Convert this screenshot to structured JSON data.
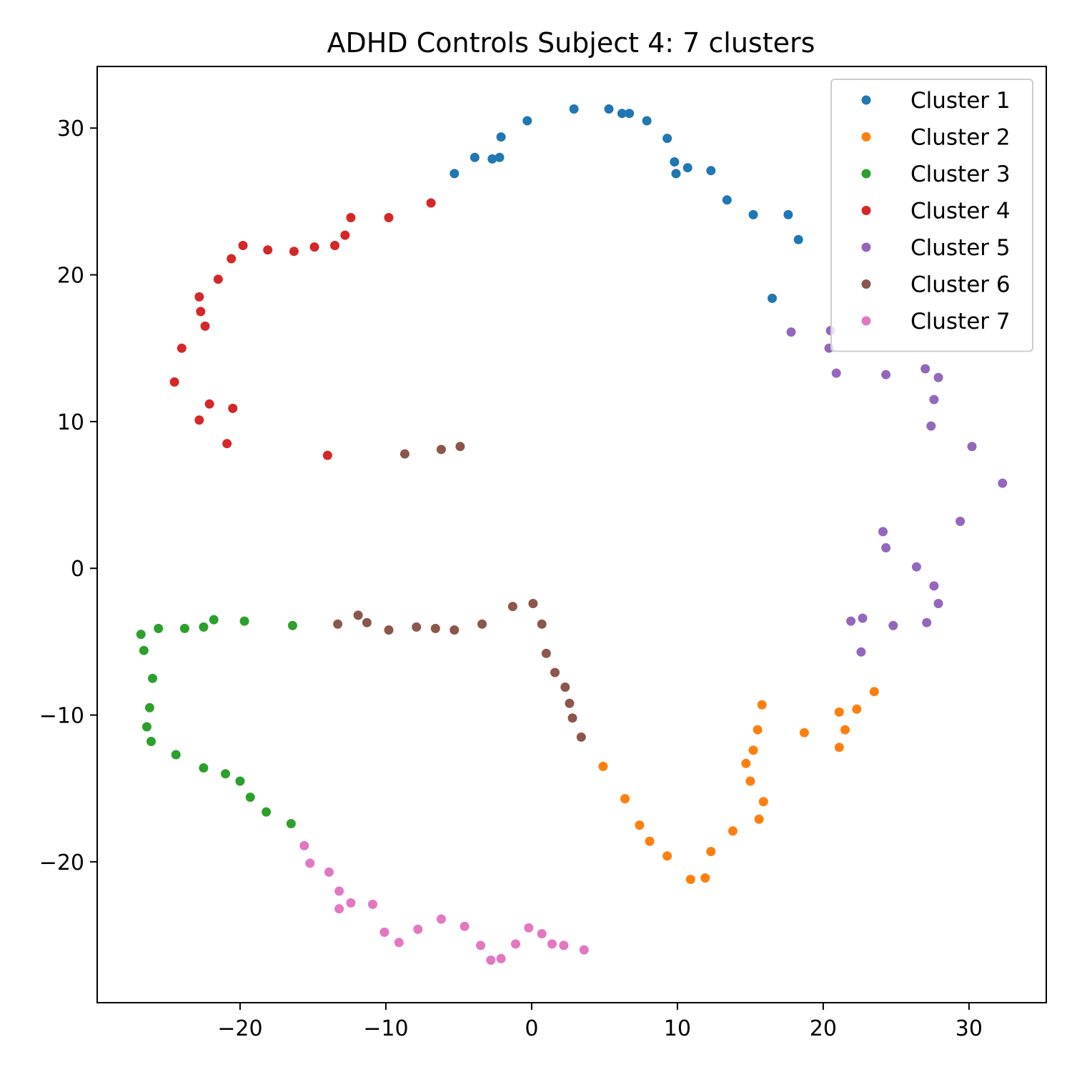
{
  "chart_data": {
    "type": "scatter",
    "title": "ADHD Controls Subject 4: 7 clusters",
    "xlabel": "",
    "ylabel": "",
    "xlim": [
      -29.8,
      35.3
    ],
    "ylim": [
      -29.6,
      34.2
    ],
    "x_ticks": [
      -20,
      -10,
      0,
      10,
      20,
      30
    ],
    "y_ticks": [
      -20,
      -10,
      0,
      10,
      20,
      30
    ],
    "x_tick_labels": [
      "−20",
      "−10",
      "0",
      "10",
      "20",
      "30"
    ],
    "y_tick_labels": [
      "−20",
      "−10",
      "0",
      "10",
      "20",
      "30"
    ],
    "grid": false,
    "legend_position": "top-right",
    "series": [
      {
        "name": "Cluster 1",
        "color": "#1f77b4",
        "points": [
          [
            -5.3,
            26.9
          ],
          [
            -3.9,
            28.0
          ],
          [
            -2.7,
            27.9
          ],
          [
            -2.2,
            28.0
          ],
          [
            -2.1,
            29.4
          ],
          [
            -0.3,
            30.5
          ],
          [
            2.9,
            31.3
          ],
          [
            5.3,
            31.3
          ],
          [
            6.2,
            31.0
          ],
          [
            6.7,
            31.0
          ],
          [
            7.9,
            30.5
          ],
          [
            9.3,
            29.3
          ],
          [
            9.8,
            27.7
          ],
          [
            9.9,
            26.9
          ],
          [
            10.7,
            27.3
          ],
          [
            12.3,
            27.1
          ],
          [
            13.4,
            25.1
          ],
          [
            15.2,
            24.1
          ],
          [
            17.6,
            24.1
          ],
          [
            18.3,
            22.4
          ],
          [
            16.5,
            18.4
          ]
        ]
      },
      {
        "name": "Cluster 2",
        "color": "#ff7f0e",
        "points": [
          [
            4.9,
            -13.5
          ],
          [
            6.4,
            -15.7
          ],
          [
            7.4,
            -17.5
          ],
          [
            8.1,
            -18.6
          ],
          [
            9.3,
            -19.6
          ],
          [
            10.9,
            -21.2
          ],
          [
            11.9,
            -21.1
          ],
          [
            12.3,
            -19.3
          ],
          [
            13.8,
            -17.9
          ],
          [
            14.7,
            -13.3
          ],
          [
            15.0,
            -14.5
          ],
          [
            15.2,
            -12.4
          ],
          [
            15.5,
            -11.0
          ],
          [
            15.6,
            -17.1
          ],
          [
            15.8,
            -9.3
          ],
          [
            15.9,
            -15.9
          ],
          [
            18.7,
            -11.2
          ],
          [
            21.1,
            -9.8
          ],
          [
            21.1,
            -12.2
          ],
          [
            21.5,
            -11.0
          ],
          [
            22.3,
            -9.6
          ],
          [
            23.5,
            -8.4
          ]
        ]
      },
      {
        "name": "Cluster 3",
        "color": "#2ca02c",
        "points": [
          [
            -26.8,
            -4.5
          ],
          [
            -26.6,
            -5.6
          ],
          [
            -26.0,
            -7.5
          ],
          [
            -25.6,
            -4.1
          ],
          [
            -26.2,
            -9.5
          ],
          [
            -26.4,
            -10.8
          ],
          [
            -26.1,
            -11.8
          ],
          [
            -24.4,
            -12.7
          ],
          [
            -23.8,
            -4.1
          ],
          [
            -22.5,
            -4.0
          ],
          [
            -21.8,
            -3.5
          ],
          [
            -22.5,
            -13.6
          ],
          [
            -21.0,
            -14.0
          ],
          [
            -20.0,
            -14.5
          ],
          [
            -19.7,
            -3.6
          ],
          [
            -19.3,
            -15.6
          ],
          [
            -18.2,
            -16.6
          ],
          [
            -16.4,
            -3.9
          ],
          [
            -16.5,
            -17.4
          ]
        ]
      },
      {
        "name": "Cluster 4",
        "color": "#d62728",
        "points": [
          [
            -24.5,
            12.7
          ],
          [
            -24.0,
            15.0
          ],
          [
            -22.8,
            18.5
          ],
          [
            -22.7,
            17.5
          ],
          [
            -22.4,
            16.5
          ],
          [
            -22.8,
            10.1
          ],
          [
            -22.1,
            11.2
          ],
          [
            -21.5,
            19.7
          ],
          [
            -20.9,
            8.5
          ],
          [
            -20.6,
            21.1
          ],
          [
            -20.5,
            10.9
          ],
          [
            -19.8,
            22.0
          ],
          [
            -18.1,
            21.7
          ],
          [
            -16.3,
            21.6
          ],
          [
            -14.9,
            21.9
          ],
          [
            -14.0,
            7.7
          ],
          [
            -13.5,
            22.0
          ],
          [
            -12.8,
            22.7
          ],
          [
            -12.4,
            23.9
          ],
          [
            -9.8,
            23.9
          ],
          [
            -6.9,
            24.9
          ]
        ]
      },
      {
        "name": "Cluster 5",
        "color": "#9467bd",
        "points": [
          [
            17.8,
            16.1
          ],
          [
            20.4,
            15.0
          ],
          [
            20.5,
            16.2
          ],
          [
            20.9,
            13.3
          ],
          [
            24.3,
            13.2
          ],
          [
            27.0,
            13.6
          ],
          [
            27.9,
            13.0
          ],
          [
            27.6,
            11.5
          ],
          [
            27.4,
            9.7
          ],
          [
            30.2,
            8.3
          ],
          [
            32.3,
            5.8
          ],
          [
            29.4,
            3.2
          ],
          [
            24.1,
            2.5
          ],
          [
            24.3,
            1.4
          ],
          [
            26.4,
            0.1
          ],
          [
            27.6,
            -1.2
          ],
          [
            27.9,
            -2.4
          ],
          [
            27.1,
            -3.7
          ],
          [
            24.8,
            -3.9
          ],
          [
            22.7,
            -3.4
          ],
          [
            21.9,
            -3.6
          ],
          [
            22.6,
            -5.7
          ]
        ]
      },
      {
        "name": "Cluster 6",
        "color": "#8c564b",
        "points": [
          [
            -8.7,
            7.8
          ],
          [
            -6.2,
            8.1
          ],
          [
            -4.9,
            8.3
          ],
          [
            -13.3,
            -3.8
          ],
          [
            -11.9,
            -3.2
          ],
          [
            -11.3,
            -3.7
          ],
          [
            -9.8,
            -4.2
          ],
          [
            -7.9,
            -4.0
          ],
          [
            -6.6,
            -4.1
          ],
          [
            -5.3,
            -4.2
          ],
          [
            -3.4,
            -3.8
          ],
          [
            -1.3,
            -2.6
          ],
          [
            0.1,
            -2.4
          ],
          [
            0.7,
            -3.8
          ],
          [
            1.0,
            -5.8
          ],
          [
            1.6,
            -7.1
          ],
          [
            2.3,
            -8.1
          ],
          [
            2.6,
            -9.2
          ],
          [
            2.8,
            -10.2
          ],
          [
            3.4,
            -11.5
          ]
        ]
      },
      {
        "name": "Cluster 7",
        "color": "#e377c2",
        "points": [
          [
            -15.6,
            -18.9
          ],
          [
            -15.2,
            -20.1
          ],
          [
            -13.9,
            -20.7
          ],
          [
            -13.2,
            -22.0
          ],
          [
            -13.2,
            -23.2
          ],
          [
            -12.4,
            -22.8
          ],
          [
            -10.9,
            -22.9
          ],
          [
            -10.1,
            -24.8
          ],
          [
            -9.1,
            -25.5
          ],
          [
            -7.8,
            -24.6
          ],
          [
            -6.2,
            -23.9
          ],
          [
            -4.6,
            -24.4
          ],
          [
            -3.5,
            -25.7
          ],
          [
            -2.8,
            -26.7
          ],
          [
            -2.1,
            -26.6
          ],
          [
            -1.1,
            -25.6
          ],
          [
            -0.2,
            -24.5
          ],
          [
            0.7,
            -24.9
          ],
          [
            1.4,
            -25.6
          ],
          [
            2.2,
            -25.7
          ],
          [
            3.6,
            -26.0
          ]
        ]
      }
    ]
  }
}
